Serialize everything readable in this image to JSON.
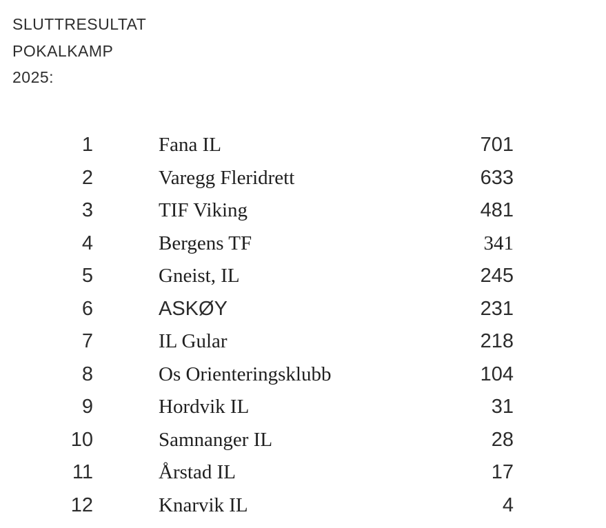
{
  "page": {
    "background_color": "#ffffff",
    "text_color": "#2c2c2c"
  },
  "header": {
    "lines": [
      "SLUTTRESULTAT",
      "POKALKAMP",
      "2025:"
    ]
  },
  "results": {
    "rows": [
      {
        "rank": "1",
        "club": "Fana IL",
        "points": "701",
        "club_font": "serif",
        "points_font": "sans"
      },
      {
        "rank": "2",
        "club": "Varegg Fleridrett",
        "points": "633",
        "club_font": "serif",
        "points_font": "sans"
      },
      {
        "rank": "3",
        "club": "TIF Viking",
        "points": "481",
        "club_font": "serif",
        "points_font": "sans"
      },
      {
        "rank": "4",
        "club": "Bergens TF",
        "points": "341",
        "club_font": "serif",
        "points_font": "serif"
      },
      {
        "rank": "5",
        "club": "Gneist, IL",
        "points": "245",
        "club_font": "serif",
        "points_font": "sans"
      },
      {
        "rank": "6",
        "club": "ASKØY",
        "points": "231",
        "club_font": "sans",
        "points_font": "sans"
      },
      {
        "rank": "7",
        "club": "IL Gular",
        "points": "218",
        "club_font": "serif",
        "points_font": "sans"
      },
      {
        "rank": "8",
        "club": "Os Orienteringsklubb",
        "points": "104",
        "club_font": "serif",
        "points_font": "sans"
      },
      {
        "rank": "9",
        "club": "Hordvik IL",
        "points": "31",
        "club_font": "serif",
        "points_font": "sans"
      },
      {
        "rank": "10",
        "club": "Samnanger IL",
        "points": "28",
        "club_font": "serif",
        "points_font": "sans"
      },
      {
        "rank": "11",
        "club": "Årstad IL",
        "points": "17",
        "club_font": "serif",
        "points_font": "sans"
      },
      {
        "rank": "12",
        "club": "Knarvik IL",
        "points": "4",
        "club_font": "serif",
        "points_font": "sans"
      }
    ]
  }
}
